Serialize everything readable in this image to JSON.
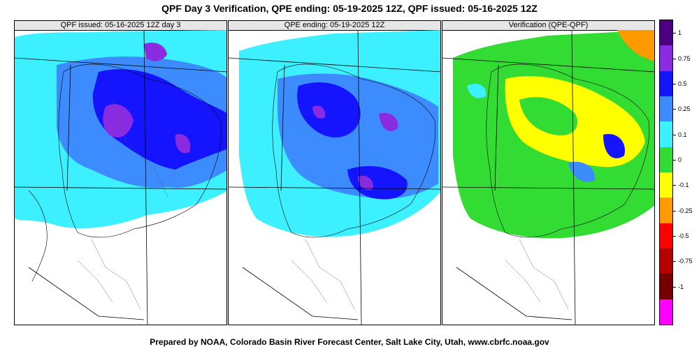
{
  "title": "QPF Day 3 Verification, QPE ending: 05-19-2025 12Z, QPF issued: 05-16-2025 12Z",
  "footer": "Prepared by NOAA, Colorado Basin River Forecast Center, Salt Lake City, Utah, www.cbrfc.noaa.gov",
  "panels": [
    {
      "id": "qpf",
      "header": "QPF issued: 05-16-2025 12Z day 3"
    },
    {
      "id": "qpe",
      "header": "QPE ending: 05-19-2025 12Z"
    },
    {
      "id": "ver",
      "header": "Verification (QPE-QPF)"
    }
  ],
  "colorbar": {
    "colors": [
      "#4b0082",
      "#8a2be2",
      "#1414ff",
      "#3c8cff",
      "#3cf0ff",
      "#32dc32",
      "#ffff00",
      "#ff9900",
      "#ff0000",
      "#b40000",
      "#780000",
      "#ff00ff"
    ],
    "labels": [
      "1",
      "0.75",
      "0.5",
      "0.25",
      "0.1",
      "0",
      "-0.1",
      "-0.25",
      "-0.5",
      "-0.75",
      "-1"
    ]
  },
  "colors": {
    "qpf_light": "#3cf0ff",
    "qpf_mid": "#3c8cff",
    "qpf_heavy": "#1414ff",
    "qpf_max": "#8a2be2",
    "ver_green": "#32dc32",
    "ver_yellow": "#ffff00",
    "ver_orange": "#ff9900"
  }
}
